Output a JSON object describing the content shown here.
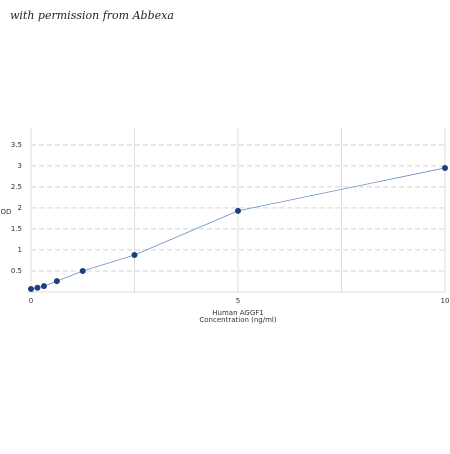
{
  "watermark": "with permission from Abbexa",
  "chart_data": {
    "type": "scatter-line",
    "ylabel": "OD",
    "xlabel": [
      "Human AGGF1",
      "Concentration (ng/ml)"
    ],
    "x": [
      0,
      0.156,
      0.313,
      0.625,
      1.25,
      2.5,
      5,
      10
    ],
    "values": [
      0.07,
      0.1,
      0.14,
      0.26,
      0.5,
      0.88,
      1.93,
      2.95
    ],
    "color": "#1f3f7a",
    "line_color": "#6b8fbf",
    "xlim": [
      0,
      10
    ],
    "xticks": [
      0,
      5,
      10
    ],
    "xgrid_minor": [
      2.5,
      7.5
    ],
    "ylim": [
      0,
      3.9
    ],
    "yticks": [
      0.5,
      1,
      1.5,
      2,
      2.5,
      3,
      3.5
    ],
    "grid": true
  }
}
